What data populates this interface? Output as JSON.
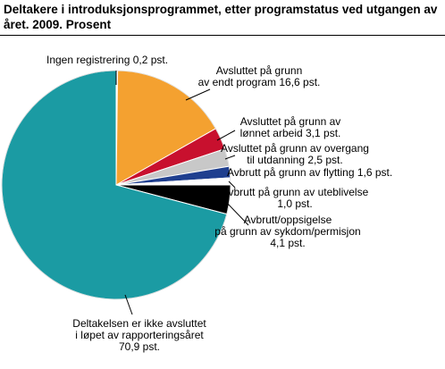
{
  "title_lines": [
    "Deltakere i introduksjonsprogrammet, etter programstatus ved utgangen av",
    "året. 2009. Prosent"
  ],
  "chart_data": {
    "type": "pie",
    "title": "Deltakere i introduksjonsprogrammet, etter programstatus ved utgangen av året. 2009. Prosent",
    "start": "12 o'clock, clockwise",
    "slices": [
      {
        "name": "Ingen registrering",
        "value": 0.2,
        "color": "#ffffff",
        "label_lines": [
          "Ingen registrering 0,2 pst."
        ]
      },
      {
        "name": "Avsluttet på grunn av endt program",
        "value": 16.6,
        "color": "#f4a130",
        "label_lines": [
          "Avsluttet på grunn",
          "av endt program 16,6 pst."
        ]
      },
      {
        "name": "Avsluttet på grunn av lønnet arbeid",
        "value": 3.1,
        "color": "#c8102e",
        "label_lines": [
          "Avsluttet på grunn av",
          "lønnet arbeid 3,1 pst."
        ]
      },
      {
        "name": "Avsluttet på grunn av overgang til utdanning",
        "value": 2.5,
        "color": "#c8c8c8",
        "label_lines": [
          "Avsluttet på grunn av overgang",
          "til utdanning 2,5 pst."
        ]
      },
      {
        "name": "Avbrutt på grunn av flytting",
        "value": 1.6,
        "color": "#1f3f8f",
        "label_lines": [
          "Avbrutt på grunn av flytting 1,6 pst."
        ]
      },
      {
        "name": "Avbrutt på grunn av uteblivelse",
        "value": 1.0,
        "color": "#ffffff",
        "label_lines": [
          "Avbrutt på grunn av uteblivelse",
          "1,0 pst."
        ]
      },
      {
        "name": "Avbrutt/oppsigelse på grunn av sykdom/permisjon",
        "value": 4.1,
        "color": "#000000",
        "label_lines": [
          "Avbrutt/oppsigelse",
          "på grunn av sykdom/permisjon",
          "4,1 pst."
        ]
      },
      {
        "name": "Deltakelsen er ikke avsluttet i løpet av rapporteringsåret",
        "value": 70.9,
        "color": "#1b9ba3",
        "label_lines": [
          "Deltakelsen er ikke avsluttet",
          "i løpet av rapporteringsåret",
          "70,9 pst."
        ]
      }
    ]
  }
}
